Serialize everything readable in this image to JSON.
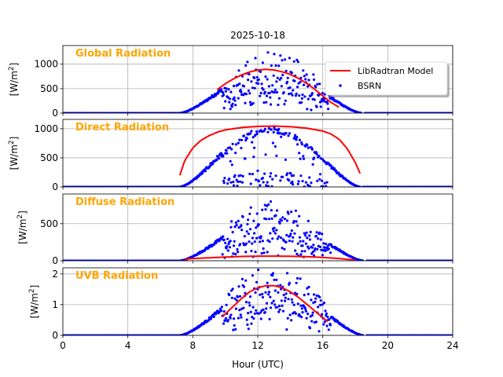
{
  "figure": {
    "title": "2025-10-18",
    "xlabel": "Hour (UTC)",
    "xticks": [
      "0",
      "4",
      "8",
      "12",
      "16",
      "20",
      "24"
    ]
  },
  "legend": {
    "model_label": "LibRadtran Model",
    "obs_label": "BSRN"
  },
  "colors": {
    "model": "#ff0000",
    "obs": "#0000ff",
    "panel_title": "#ffa500",
    "grid": "#b0b0b0"
  },
  "chart_data": [
    {
      "type": "line+scatter",
      "title": "Global Radiation",
      "ylabel_unit": "W/m",
      "ylabel_exp": "2",
      "xlim": [
        0,
        24
      ],
      "ylim": [
        0,
        1380
      ],
      "yticks": [
        0,
        500,
        1000
      ],
      "ytick_labels": [
        "0",
        "500",
        "1000"
      ],
      "series": [
        {
          "name": "LibRadtran Model",
          "kind": "line",
          "x": [
            9.5,
            10,
            10.5,
            11,
            11.5,
            12,
            12.5,
            13,
            13.5,
            14,
            14.5,
            15,
            15.5,
            16,
            16.5,
            17
          ],
          "y": [
            480,
            600,
            700,
            780,
            840,
            880,
            895,
            880,
            845,
            790,
            710,
            610,
            490,
            350,
            220,
            120
          ]
        },
        {
          "name": "BSRN",
          "kind": "scatter",
          "day_start": 7.2,
          "day_end": 18.4,
          "clear_peak": 880,
          "noise": "cloudy-scatter"
        }
      ]
    },
    {
      "type": "line+scatter",
      "title": "Direct Radiation",
      "ylabel_unit": "W/m",
      "ylabel_exp": "2",
      "xlim": [
        0,
        24
      ],
      "ylim": [
        0,
        1160
      ],
      "yticks": [
        0,
        500,
        1000
      ],
      "ytick_labels": [
        "0",
        "500",
        "1000"
      ],
      "series": [
        {
          "name": "LibRadtran Model",
          "kind": "line",
          "x": [
            7.2,
            7.5,
            8,
            8.5,
            9,
            9.5,
            10,
            11,
            12,
            13,
            14,
            15,
            16,
            16.5,
            17,
            17.5,
            18,
            18.3
          ],
          "y": [
            200,
            450,
            670,
            800,
            880,
            940,
            980,
            1020,
            1040,
            1045,
            1035,
            1010,
            960,
            910,
            820,
            660,
            420,
            230
          ]
        },
        {
          "name": "BSRN",
          "kind": "scatter",
          "day_start": 7.2,
          "day_end": 18.3,
          "clear_peak": 1040,
          "noise": "bimodal"
        }
      ]
    },
    {
      "type": "line+scatter",
      "title": "Diffuse Radiation",
      "ylabel_unit": "W/m",
      "ylabel_exp": "2",
      "xlim": [
        0,
        24
      ],
      "ylim": [
        0,
        900
      ],
      "yticks": [
        0,
        500
      ],
      "ytick_labels": [
        "0",
        "500"
      ],
      "series": [
        {
          "name": "LibRadtran Model",
          "kind": "line",
          "x": [
            7.5,
            8,
            9,
            10,
            11,
            12,
            13,
            14,
            15,
            16,
            17,
            18
          ],
          "y": [
            20,
            30,
            40,
            50,
            58,
            62,
            63,
            60,
            55,
            45,
            30,
            10
          ]
        },
        {
          "name": "BSRN",
          "kind": "scatter",
          "day_start": 7.2,
          "day_end": 18.5,
          "clear_peak": 560,
          "noise": "cloudy-scatter"
        }
      ]
    },
    {
      "type": "line+scatter",
      "title": "UVB Radiation",
      "ylabel_unit": "W/m",
      "ylabel_exp": "2",
      "xlim": [
        0,
        24
      ],
      "ylim": [
        0,
        2.2
      ],
      "yticks": [
        0,
        1,
        2
      ],
      "ytick_labels": [
        "0",
        "1",
        "2"
      ],
      "series": [
        {
          "name": "LibRadtran Model",
          "kind": "line",
          "x": [
            9.8,
            10.5,
            11,
            11.5,
            12,
            12.5,
            13,
            13.5,
            14,
            14.5,
            15,
            15.5,
            16,
            16.3
          ],
          "y": [
            0.6,
            0.95,
            1.2,
            1.42,
            1.55,
            1.62,
            1.62,
            1.55,
            1.42,
            1.24,
            1.02,
            0.8,
            0.58,
            0.45
          ]
        },
        {
          "name": "BSRN",
          "kind": "scatter",
          "day_start": 7.2,
          "day_end": 18.5,
          "clear_peak": 1.6,
          "noise": "cloudy-scatter"
        }
      ]
    }
  ]
}
